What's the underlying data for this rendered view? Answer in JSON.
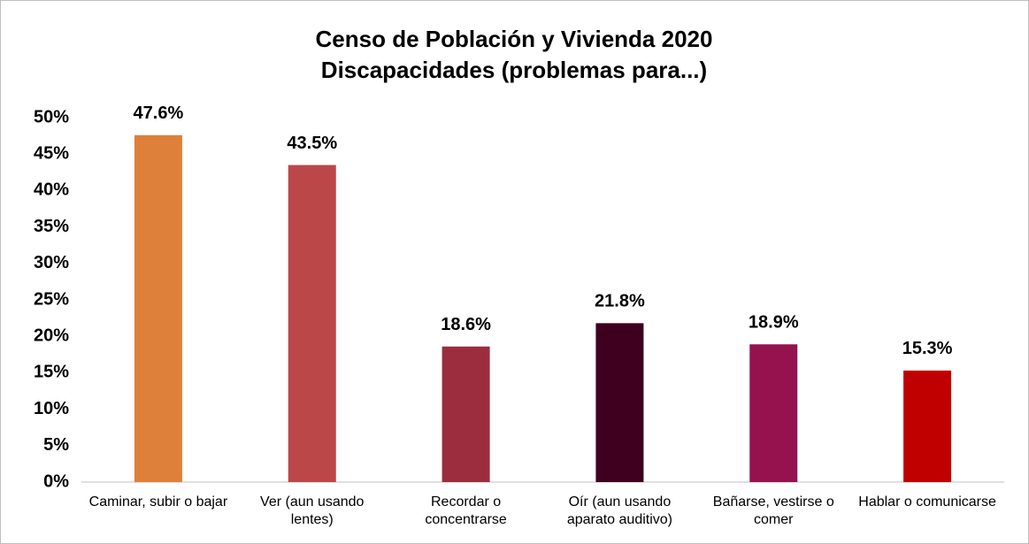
{
  "chart_data": {
    "type": "bar",
    "title": "Censo de Población y Vivienda 2020",
    "subtitle": "Discapacidades (problemas para...)",
    "categories": [
      "Caminar, subir o bajar",
      "Ver (aun usando lentes)",
      "Recordar o concentrarse",
      "Oír (aun usando aparato auditivo)",
      "Bañarse, vestirse o comer",
      "Hablar o comunicarse"
    ],
    "values": [
      47.6,
      43.5,
      18.6,
      21.8,
      18.9,
      15.3
    ],
    "value_labels": [
      "47.6%",
      "43.5%",
      "18.6%",
      "21.8%",
      "18.9%",
      "15.3%"
    ],
    "colors": [
      "#de8039",
      "#bc4749",
      "#9b2d3e",
      "#3f0020",
      "#95124f",
      "#c00000"
    ],
    "ylim": [
      0,
      50
    ],
    "yticks": [
      {
        "value": 0,
        "label": "0%"
      },
      {
        "value": 5,
        "label": "5%"
      },
      {
        "value": 10,
        "label": "10%"
      },
      {
        "value": 15,
        "label": "15%"
      },
      {
        "value": 20,
        "label": "20%"
      },
      {
        "value": 25,
        "label": "25%"
      },
      {
        "value": 30,
        "label": "30%"
      },
      {
        "value": 35,
        "label": "35%"
      },
      {
        "value": 40,
        "label": "40%"
      },
      {
        "value": 45,
        "label": "45%"
      },
      {
        "value": 50,
        "label": "50%"
      }
    ],
    "grid": false
  }
}
